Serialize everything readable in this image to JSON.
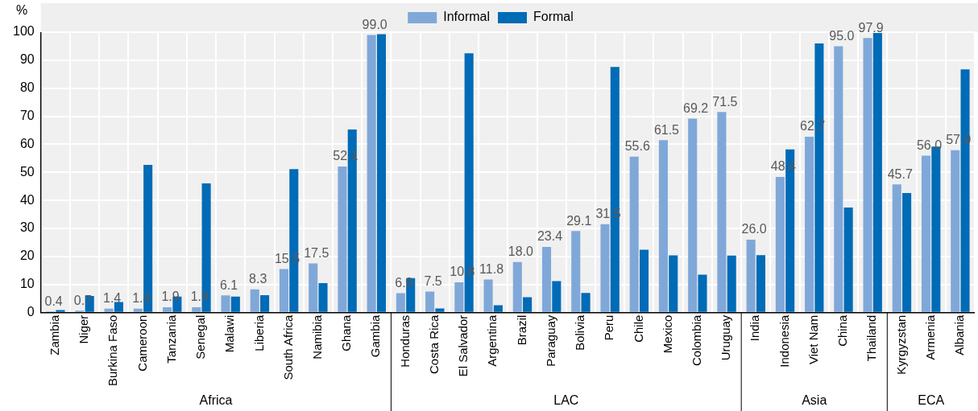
{
  "chart_data": {
    "type": "bar",
    "ylabel": "%",
    "categories": [
      "Zambia",
      "Niger",
      "Burkina Faso",
      "Cameroon",
      "Tanzania",
      "Senegal",
      "Malawi",
      "Liberia",
      "South Africa",
      "Namibia",
      "Ghana",
      "Gambia",
      "Honduras",
      "Costa Rica",
      "El Salvador",
      "Argentina",
      "Brazil",
      "Paraguay",
      "Bolivia",
      "Peru",
      "Chile",
      "Mexico",
      "Colombia",
      "Uruguay",
      "India",
      "Indonesia",
      "Viet Nam",
      "China",
      "Thailand",
      "Kyrgyzstan",
      "Armenia",
      "Albania"
    ],
    "series": [
      {
        "name": "Informal",
        "color": "#7fa8d9",
        "values": [
          0.4,
          0.7,
          1.4,
          1.4,
          1.9,
          1.9,
          6.1,
          8.3,
          15.5,
          17.5,
          52.1,
          99.0,
          6.9,
          7.5,
          10.8,
          11.8,
          18.0,
          23.4,
          29.1,
          31.5,
          55.6,
          61.5,
          69.2,
          71.5,
          26.0,
          48.4,
          62.7,
          95.0,
          97.9,
          45.7,
          56.0,
          57.9
        ],
        "value_labels": [
          "0.4",
          "0.7",
          "1.4",
          "1.4",
          "1.9",
          "1.9",
          "6.1",
          "8.3",
          "15.5",
          "17.5",
          "52.1",
          "99.0",
          "6.9",
          "7.5",
          "10.8",
          "11.8",
          "18.0",
          "23.4",
          "29.1",
          "31.5",
          "55.6",
          "61.5",
          "69.2",
          "71.5",
          "26.0",
          "48.4",
          "62.7",
          "95.0",
          "97.9",
          "45.7",
          "56.0",
          "57.9"
        ]
      },
      {
        "name": "Formal",
        "color": "#006bb6",
        "values": [
          0.9,
          5.9,
          3.8,
          52.7,
          5.7,
          46.1,
          5.7,
          6.2,
          51.2,
          10.5,
          65.3,
          99.3,
          12.3,
          1.5,
          92.5,
          2.6,
          5.5,
          11.2,
          7.0,
          87.6,
          22.4,
          20.4,
          13.5,
          20.3,
          20.5,
          58.2,
          96.0,
          37.5,
          99.7,
          42.6,
          59.2,
          86.7
        ]
      }
    ],
    "ylim": [
      0,
      100
    ],
    "yticks": [
      0,
      10,
      20,
      30,
      40,
      50,
      60,
      70,
      80,
      90,
      100
    ],
    "grid": true,
    "legend": "top",
    "annotations": [
      "Africa",
      "LAC",
      "Asia",
      "ECA"
    ]
  }
}
